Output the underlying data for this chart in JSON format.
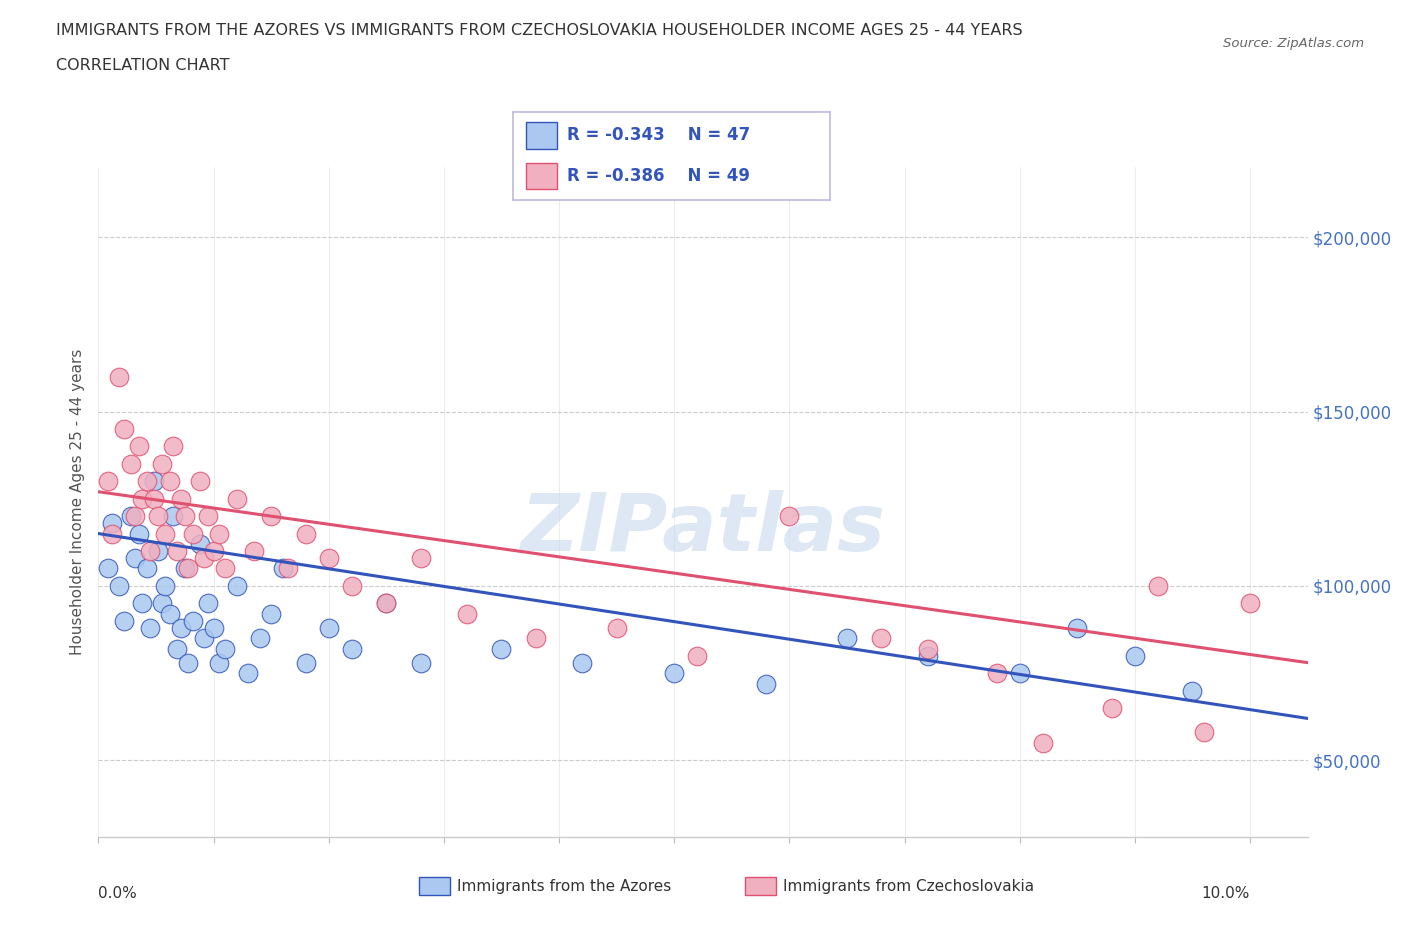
{
  "title_line1": "IMMIGRANTS FROM THE AZORES VS IMMIGRANTS FROM CZECHOSLOVAKIA HOUSEHOLDER INCOME AGES 25 - 44 YEARS",
  "title_line2": "CORRELATION CHART",
  "source": "Source: ZipAtlas.com",
  "ylabel": "Householder Income Ages 25 - 44 years",
  "yticks": [
    50000,
    100000,
    150000,
    200000
  ],
  "ytick_labels": [
    "$50,000",
    "$100,000",
    "$150,000",
    "$200,000"
  ],
  "xlim": [
    0.0,
    10.5
  ],
  "ylim": [
    28000,
    220000
  ],
  "legend1_label": "Immigrants from the Azores",
  "legend2_label": "Immigrants from Czechoslovakia",
  "R_azores": -0.343,
  "N_azores": 47,
  "R_czech": -0.386,
  "N_czech": 49,
  "color_azores": "#aac8f0",
  "color_czech": "#f0b0c0",
  "line_color_azores": "#3355bb",
  "line_color_czech": "#e05070",
  "tick_color": "#4472c4",
  "background_color": "#ffffff",
  "watermark": "ZIPatlas",
  "azores_x": [
    0.08,
    0.12,
    0.18,
    0.22,
    0.28,
    0.32,
    0.35,
    0.38,
    0.42,
    0.45,
    0.48,
    0.52,
    0.55,
    0.58,
    0.62,
    0.65,
    0.68,
    0.72,
    0.75,
    0.78,
    0.82,
    0.88,
    0.92,
    0.95,
    1.0,
    1.05,
    1.1,
    1.2,
    1.3,
    1.4,
    1.5,
    1.6,
    1.8,
    2.0,
    2.2,
    2.5,
    2.8,
    3.5,
    4.2,
    5.0,
    5.8,
    6.5,
    7.2,
    8.0,
    8.5,
    9.0,
    9.5
  ],
  "azores_y": [
    105000,
    118000,
    100000,
    90000,
    120000,
    108000,
    115000,
    95000,
    105000,
    88000,
    130000,
    110000,
    95000,
    100000,
    92000,
    120000,
    82000,
    88000,
    105000,
    78000,
    90000,
    112000,
    85000,
    95000,
    88000,
    78000,
    82000,
    100000,
    75000,
    85000,
    92000,
    105000,
    78000,
    88000,
    82000,
    95000,
    78000,
    82000,
    78000,
    75000,
    72000,
    85000,
    80000,
    75000,
    88000,
    80000,
    70000
  ],
  "czech_x": [
    0.08,
    0.12,
    0.18,
    0.22,
    0.28,
    0.32,
    0.35,
    0.38,
    0.42,
    0.45,
    0.48,
    0.52,
    0.55,
    0.58,
    0.62,
    0.65,
    0.68,
    0.72,
    0.75,
    0.78,
    0.82,
    0.88,
    0.92,
    0.95,
    1.0,
    1.05,
    1.1,
    1.2,
    1.35,
    1.5,
    1.65,
    1.8,
    2.0,
    2.2,
    2.5,
    2.8,
    3.2,
    3.8,
    4.5,
    5.2,
    6.0,
    6.8,
    7.2,
    7.8,
    8.2,
    8.8,
    9.2,
    9.6,
    10.0
  ],
  "czech_y": [
    130000,
    115000,
    160000,
    145000,
    135000,
    120000,
    140000,
    125000,
    130000,
    110000,
    125000,
    120000,
    135000,
    115000,
    130000,
    140000,
    110000,
    125000,
    120000,
    105000,
    115000,
    130000,
    108000,
    120000,
    110000,
    115000,
    105000,
    125000,
    110000,
    120000,
    105000,
    115000,
    108000,
    100000,
    95000,
    108000,
    92000,
    85000,
    88000,
    80000,
    120000,
    85000,
    82000,
    75000,
    55000,
    65000,
    100000,
    58000,
    95000
  ],
  "reg_az_x0": 0.0,
  "reg_az_y0": 115000,
  "reg_az_x1": 10.5,
  "reg_az_y1": 62000,
  "reg_cz_x0": 0.0,
  "reg_cz_y0": 127000,
  "reg_cz_x1": 10.5,
  "reg_cz_y1": 78000
}
